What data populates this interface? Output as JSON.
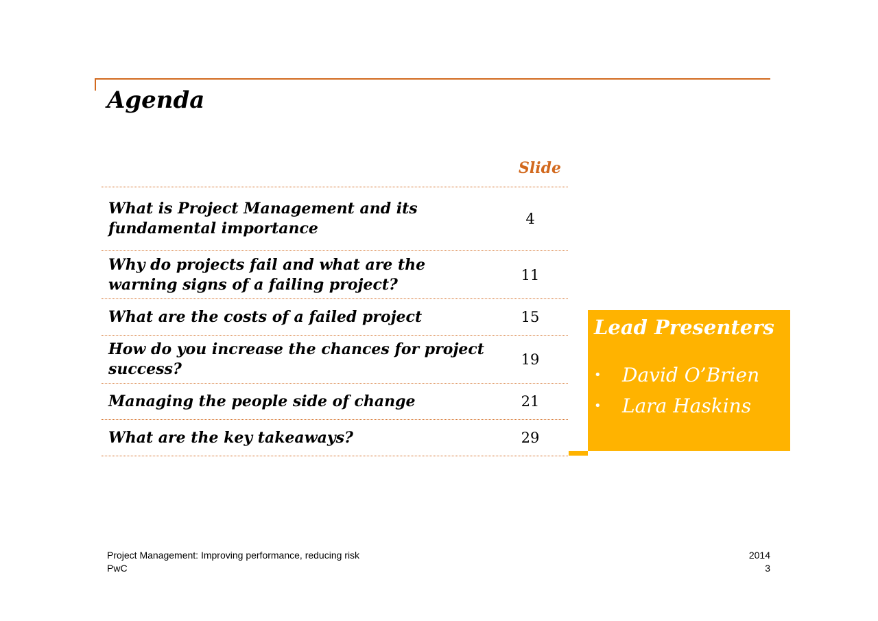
{
  "title": "Agenda",
  "column_header": "Slide",
  "agenda": [
    {
      "topic": "What is Project Management and its fundamental importance",
      "slide": "4"
    },
    {
      "topic": "Why do projects fail and what are the warning signs of a failing project?",
      "slide": "11"
    },
    {
      "topic": "What are the costs of a failed project",
      "slide": "15"
    },
    {
      "topic": "How do you increase the chances for project success?",
      "slide": "19"
    },
    {
      "topic": "Managing the people side of change",
      "slide": "21"
    },
    {
      "topic": "What are the key takeaways?",
      "slide": "29"
    }
  ],
  "presenters": {
    "heading": "Lead Presenters",
    "bullet": "•",
    "names": [
      "David O’Brien",
      "Lara Haskins"
    ]
  },
  "footer": {
    "subtitle": "Project Management: Improving performance, reducing risk",
    "company": "PwC",
    "year": "2014",
    "page": "3"
  },
  "colors": {
    "accent": "#d2691e",
    "highlight": "#ffb300"
  }
}
